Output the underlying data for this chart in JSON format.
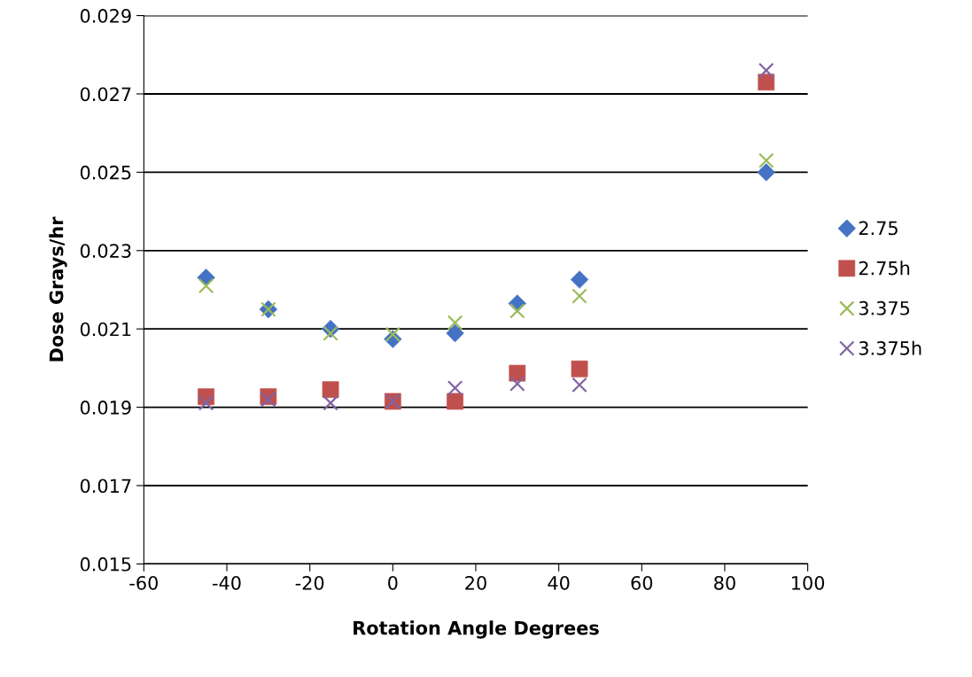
{
  "chart_data": {
    "type": "scatter",
    "xlabel": "Rotation Angle Degrees",
    "ylabel": "Dose Grays/hr",
    "x": [
      -45,
      -30,
      -15,
      0,
      15,
      30,
      45,
      90
    ],
    "series": [
      {
        "name": "2.75",
        "color": "#4472c4",
        "marker": "diamond",
        "values": [
          0.02231,
          0.0215,
          0.021,
          0.02074,
          0.02089,
          0.02165,
          0.02226,
          0.025
        ]
      },
      {
        "name": "2.75h",
        "color": "#c0504d",
        "marker": "square",
        "values": [
          0.01927,
          0.01927,
          0.01945,
          0.01915,
          0.01915,
          0.01987,
          0.01998,
          0.0273
        ]
      },
      {
        "name": "3.375",
        "color": "#9bbb59",
        "marker": "cross",
        "values": [
          0.0221,
          0.0215,
          0.02089,
          0.02086,
          0.02116,
          0.02146,
          0.02184,
          0.0253
        ]
      },
      {
        "name": "3.375h",
        "color": "#8064a2",
        "marker": "cross",
        "values": [
          0.01911,
          0.0192,
          0.01911,
          0.01915,
          0.01949,
          0.0196,
          0.01957,
          0.0276
        ]
      }
    ],
    "xlim": [
      -60,
      100
    ],
    "xticks": [
      -60,
      -40,
      -20,
      0,
      20,
      40,
      60,
      80,
      100
    ],
    "ylim": [
      0.015,
      0.029
    ],
    "yticks": [
      0.015,
      0.017,
      0.019,
      0.021,
      0.023,
      0.025,
      0.027,
      0.029
    ],
    "grid": "y",
    "legend": "right"
  }
}
